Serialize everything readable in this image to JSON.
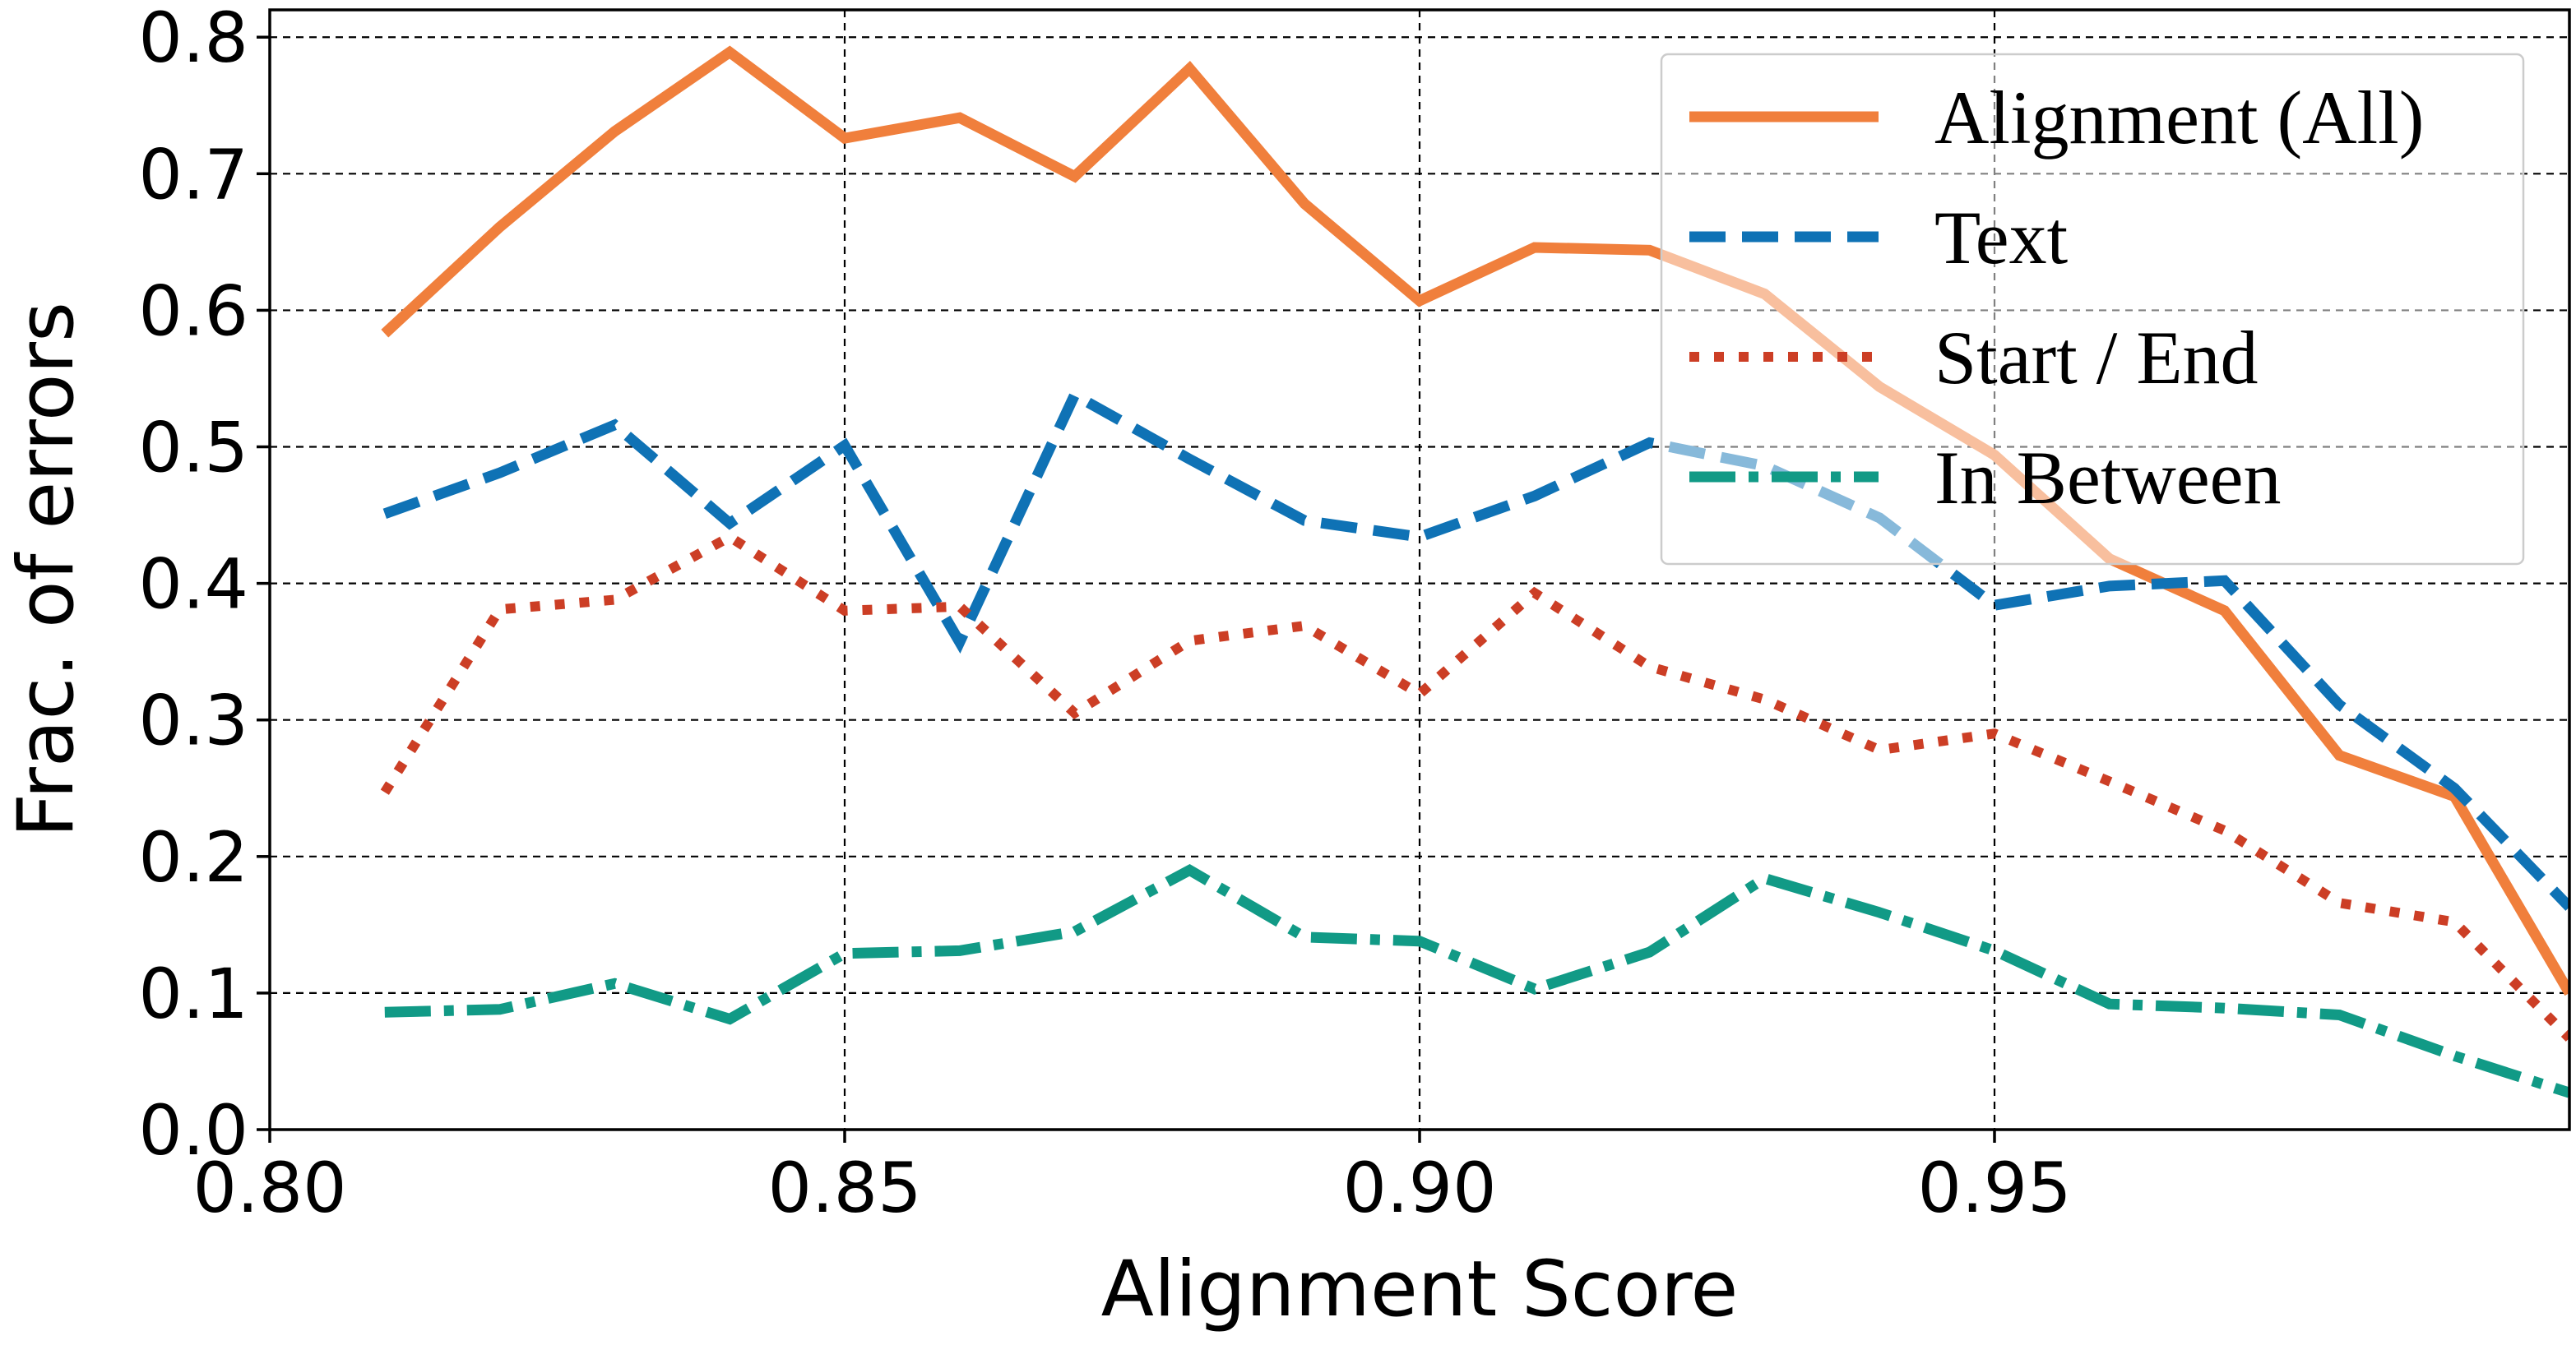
{
  "chart_data": {
    "type": "line",
    "xlabel": "Alignment Score",
    "ylabel": "Frac. of errors",
    "xlim": [
      0.8,
      1.0
    ],
    "ylim": [
      0.0,
      0.82
    ],
    "xticks": [
      "0.80",
      "0.85",
      "0.90",
      "0.95"
    ],
    "yticks": [
      "0.0",
      "0.1",
      "0.2",
      "0.3",
      "0.4",
      "0.5",
      "0.6",
      "0.7",
      "0.8"
    ],
    "grid": true,
    "legend_position": "top-right",
    "x": [
      0.81,
      0.82,
      0.83,
      0.84,
      0.85,
      0.86,
      0.87,
      0.88,
      0.89,
      0.9,
      0.91,
      0.92,
      0.93,
      0.94,
      0.95,
      0.96,
      0.97,
      0.98,
      0.99,
      1.0
    ],
    "series": [
      {
        "name": "Alignment (All)",
        "color": "#f07f3c",
        "style": "solid",
        "values": [
          0.583,
          0.661,
          0.731,
          0.789,
          0.726,
          0.741,
          0.698,
          0.777,
          0.678,
          0.607,
          0.646,
          0.644,
          0.612,
          0.544,
          0.494,
          0.418,
          0.38,
          0.274,
          0.244,
          0.1
        ]
      },
      {
        "name": "Text",
        "color": "#0f72b5",
        "style": "dashed",
        "values": [
          0.451,
          0.481,
          0.516,
          0.444,
          0.501,
          0.357,
          0.538,
          0.491,
          0.446,
          0.434,
          0.464,
          0.503,
          0.486,
          0.448,
          0.384,
          0.398,
          0.402,
          0.311,
          0.25,
          0.163
        ]
      },
      {
        "name": "Start / End",
        "color": "#cc3e25",
        "style": "dotted",
        "values": [
          0.247,
          0.381,
          0.388,
          0.434,
          0.38,
          0.383,
          0.305,
          0.358,
          0.369,
          0.319,
          0.393,
          0.339,
          0.315,
          0.278,
          0.29,
          0.255,
          0.219,
          0.166,
          0.152,
          0.067
        ]
      },
      {
        "name": "In Between",
        "color": "#119a86",
        "style": "dashdot",
        "values": [
          0.086,
          0.088,
          0.107,
          0.081,
          0.129,
          0.131,
          0.145,
          0.19,
          0.141,
          0.138,
          0.103,
          0.13,
          0.184,
          0.159,
          0.131,
          0.092,
          0.089,
          0.084,
          0.054,
          0.027
        ]
      }
    ]
  }
}
